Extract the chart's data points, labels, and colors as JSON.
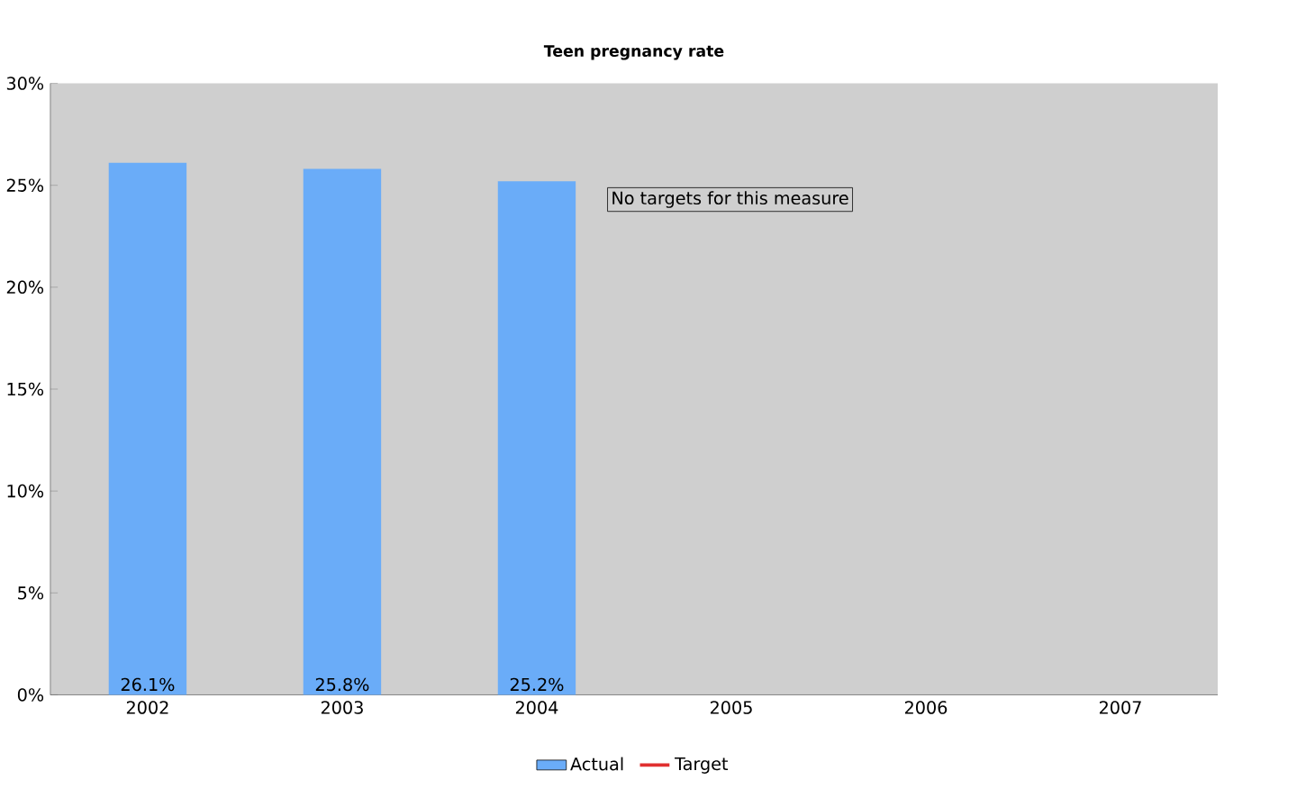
{
  "chart_data": {
    "type": "bar",
    "title": "Teen pregnancy rate",
    "categories": [
      "2002",
      "2003",
      "2004",
      "2005",
      "2006",
      "2007"
    ],
    "series": [
      {
        "name": "Actual",
        "color": "#6aacf8",
        "values": [
          26.1,
          25.8,
          25.2,
          null,
          null,
          null
        ],
        "value_labels": [
          "26.1%",
          "25.8%",
          "25.2%",
          null,
          null,
          null
        ]
      },
      {
        "name": "Target",
        "type": "line",
        "color": "#e03030",
        "values": [
          null,
          null,
          null,
          null,
          null,
          null
        ]
      }
    ],
    "ylim": [
      0,
      30
    ],
    "yticks": [
      {
        "value": 0,
        "label": "0%"
      },
      {
        "value": 5,
        "label": "5%"
      },
      {
        "value": 10,
        "label": "10%"
      },
      {
        "value": 15,
        "label": "15%"
      },
      {
        "value": 20,
        "label": "20%"
      },
      {
        "value": 25,
        "label": "25%"
      },
      {
        "value": 30,
        "label": "30%"
      }
    ],
    "annotations": [
      "No targets for this measure"
    ],
    "legend": "bottom",
    "grid": false
  }
}
